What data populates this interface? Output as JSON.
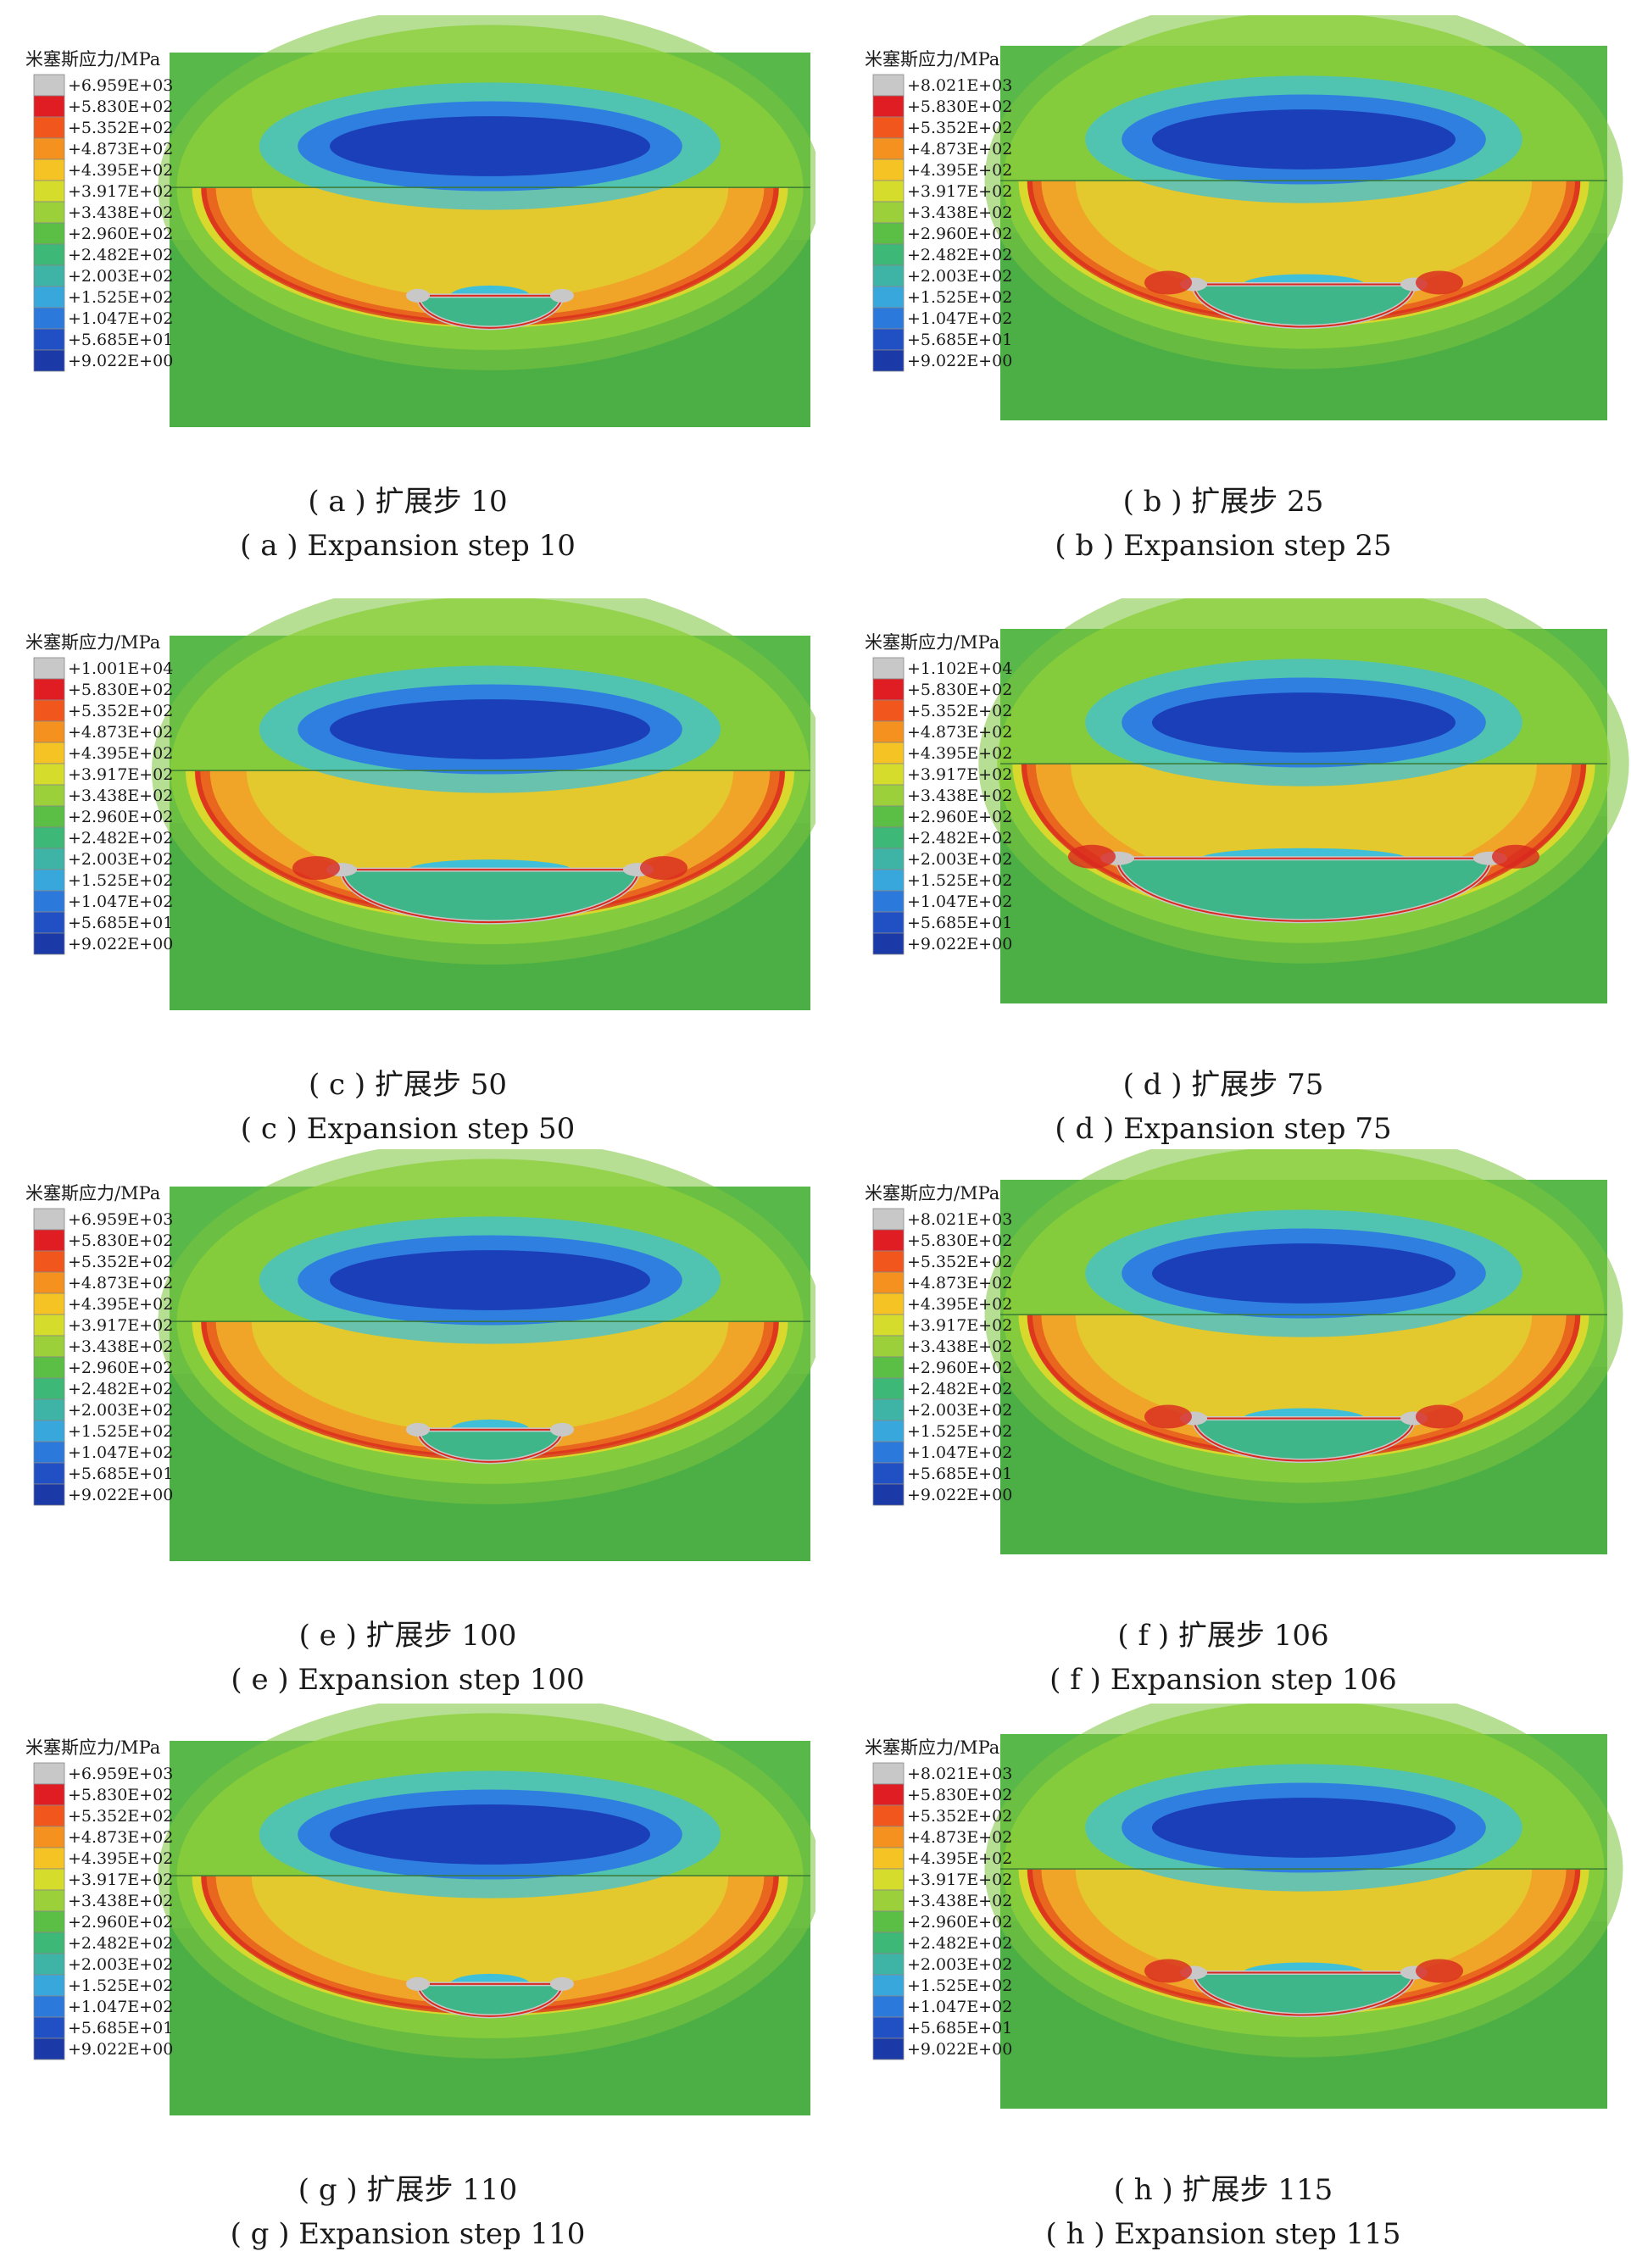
{
  "colors": {
    "background_green": "#4caf45",
    "deep_blue": "#1a3fb8",
    "blue": "#2f7fe0",
    "cyan": "#40c0d8",
    "teal": "#3fb58a",
    "light_green": "#8ccf3c",
    "yellow": "#d9d82c",
    "orange": "#f0a528",
    "dark_orange": "#e8661e",
    "red": "#d9281f",
    "grey": "#c8c8c8"
  },
  "legend_palette": [
    "#c8c8c8",
    "#e11d24",
    "#f1561d",
    "#f5921f",
    "#f6c324",
    "#d6dc2c",
    "#9bd03a",
    "#5cbf45",
    "#3eb876",
    "#3db4a6",
    "#38a8dc",
    "#2c79dc",
    "#2150c4",
    "#1b3aa8"
  ],
  "panels": [
    {
      "legend_title": "米塞斯应力/MPa",
      "legend_values": [
        "+6.959E+03",
        "+5.830E+02",
        "+5.352E+02",
        "+4.873E+02",
        "+4.395E+02",
        "+3.917E+02",
        "+3.438E+02",
        "+2.960E+02",
        "+2.482E+02",
        "+2.003E+02",
        "+1.525E+02",
        "+1.047E+02",
        "+5.685E+01",
        "+9.022E+00"
      ],
      "caption_cn": "( a ) 扩展步 10",
      "caption_en": "( a ) Expansion step 10",
      "crack_stage": 1
    },
    {
      "legend_title": "米塞斯应力/MPa",
      "legend_values": [
        "+8.021E+03",
        "+5.830E+02",
        "+5.352E+02",
        "+4.873E+02",
        "+4.395E+02",
        "+3.917E+02",
        "+3.438E+02",
        "+2.960E+02",
        "+2.482E+02",
        "+2.003E+02",
        "+1.525E+02",
        "+1.047E+02",
        "+5.685E+01",
        "+9.022E+00"
      ],
      "caption_cn": "( b ) 扩展步 25",
      "caption_en": "( b ) Expansion step 25",
      "crack_stage": 2
    },
    {
      "legend_title": "米塞斯应力/MPa",
      "legend_values": [
        "+1.001E+04",
        "+5.830E+02",
        "+5.352E+02",
        "+4.873E+02",
        "+4.395E+02",
        "+3.917E+02",
        "+3.438E+02",
        "+2.960E+02",
        "+2.482E+02",
        "+2.003E+02",
        "+1.525E+02",
        "+1.047E+02",
        "+5.685E+01",
        "+9.022E+00"
      ],
      "caption_cn": "( c ) 扩展步 50",
      "caption_en": "( c ) Expansion step 50",
      "crack_stage": 3
    },
    {
      "legend_title": "米塞斯应力/MPa",
      "legend_values": [
        "+1.102E+04",
        "+5.830E+02",
        "+5.352E+02",
        "+4.873E+02",
        "+4.395E+02",
        "+3.917E+02",
        "+3.438E+02",
        "+2.960E+02",
        "+2.482E+02",
        "+2.003E+02",
        "+1.525E+02",
        "+1.047E+02",
        "+5.685E+01",
        "+9.022E+00"
      ],
      "caption_cn": "( d ) 扩展步 75",
      "caption_en": "( d ) Expansion step 75",
      "crack_stage": 4
    },
    {
      "legend_title": "米塞斯应力/MPa",
      "legend_values": [
        "+6.959E+03",
        "+5.830E+02",
        "+5.352E+02",
        "+4.873E+02",
        "+4.395E+02",
        "+3.917E+02",
        "+3.438E+02",
        "+2.960E+02",
        "+2.482E+02",
        "+2.003E+02",
        "+1.525E+02",
        "+1.047E+02",
        "+5.685E+01",
        "+9.022E+00"
      ],
      "caption_cn": "( e ) 扩展步 100",
      "caption_en": "( e ) Expansion step 100",
      "crack_stage": 1
    },
    {
      "legend_title": "米塞斯应力/MPa",
      "legend_values": [
        "+8.021E+03",
        "+5.830E+02",
        "+5.352E+02",
        "+4.873E+02",
        "+4.395E+02",
        "+3.917E+02",
        "+3.438E+02",
        "+2.960E+02",
        "+2.482E+02",
        "+2.003E+02",
        "+1.525E+02",
        "+1.047E+02",
        "+5.685E+01",
        "+9.022E+00"
      ],
      "caption_cn": "( f ) 扩展步 106",
      "caption_en": "( f ) Expansion step 106",
      "crack_stage": 2
    },
    {
      "legend_title": "米塞斯应力/MPa",
      "legend_values": [
        "+6.959E+03",
        "+5.830E+02",
        "+5.352E+02",
        "+4.873E+02",
        "+4.395E+02",
        "+3.917E+02",
        "+3.438E+02",
        "+2.960E+02",
        "+2.482E+02",
        "+2.003E+02",
        "+1.525E+02",
        "+1.047E+02",
        "+5.685E+01",
        "+9.022E+00"
      ],
      "caption_cn": "( g ) 扩展步 110",
      "caption_en": "( g ) Expansion step 110",
      "crack_stage": 1
    },
    {
      "legend_title": "米塞斯应力/MPa",
      "legend_values": [
        "+8.021E+03",
        "+5.830E+02",
        "+5.352E+02",
        "+4.873E+02",
        "+4.395E+02",
        "+3.917E+02",
        "+3.438E+02",
        "+2.960E+02",
        "+2.482E+02",
        "+2.003E+02",
        "+1.525E+02",
        "+1.047E+02",
        "+5.685E+01",
        "+9.022E+00"
      ],
      "caption_cn": "( h ) 扩展步 115",
      "caption_en": "( h ) Expansion step 115",
      "crack_stage": 2
    }
  ]
}
